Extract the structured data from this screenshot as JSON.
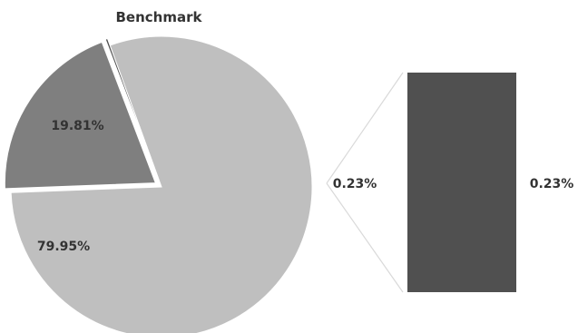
{
  "chart_data": {
    "type": "pie",
    "title": "Benchmark",
    "slices": [
      {
        "value": 79.95,
        "label": "79.95%",
        "color": "#bfbfbf"
      },
      {
        "value": 19.81,
        "label": "19.81%",
        "color": "#7f7f7f"
      },
      {
        "value": 0.23,
        "label": "0.23%",
        "color": "#505050"
      }
    ],
    "breakout_bar": {
      "value": 0.23,
      "label": "0.23%",
      "color": "#505050"
    },
    "connector_color": "#d9d9d9"
  }
}
